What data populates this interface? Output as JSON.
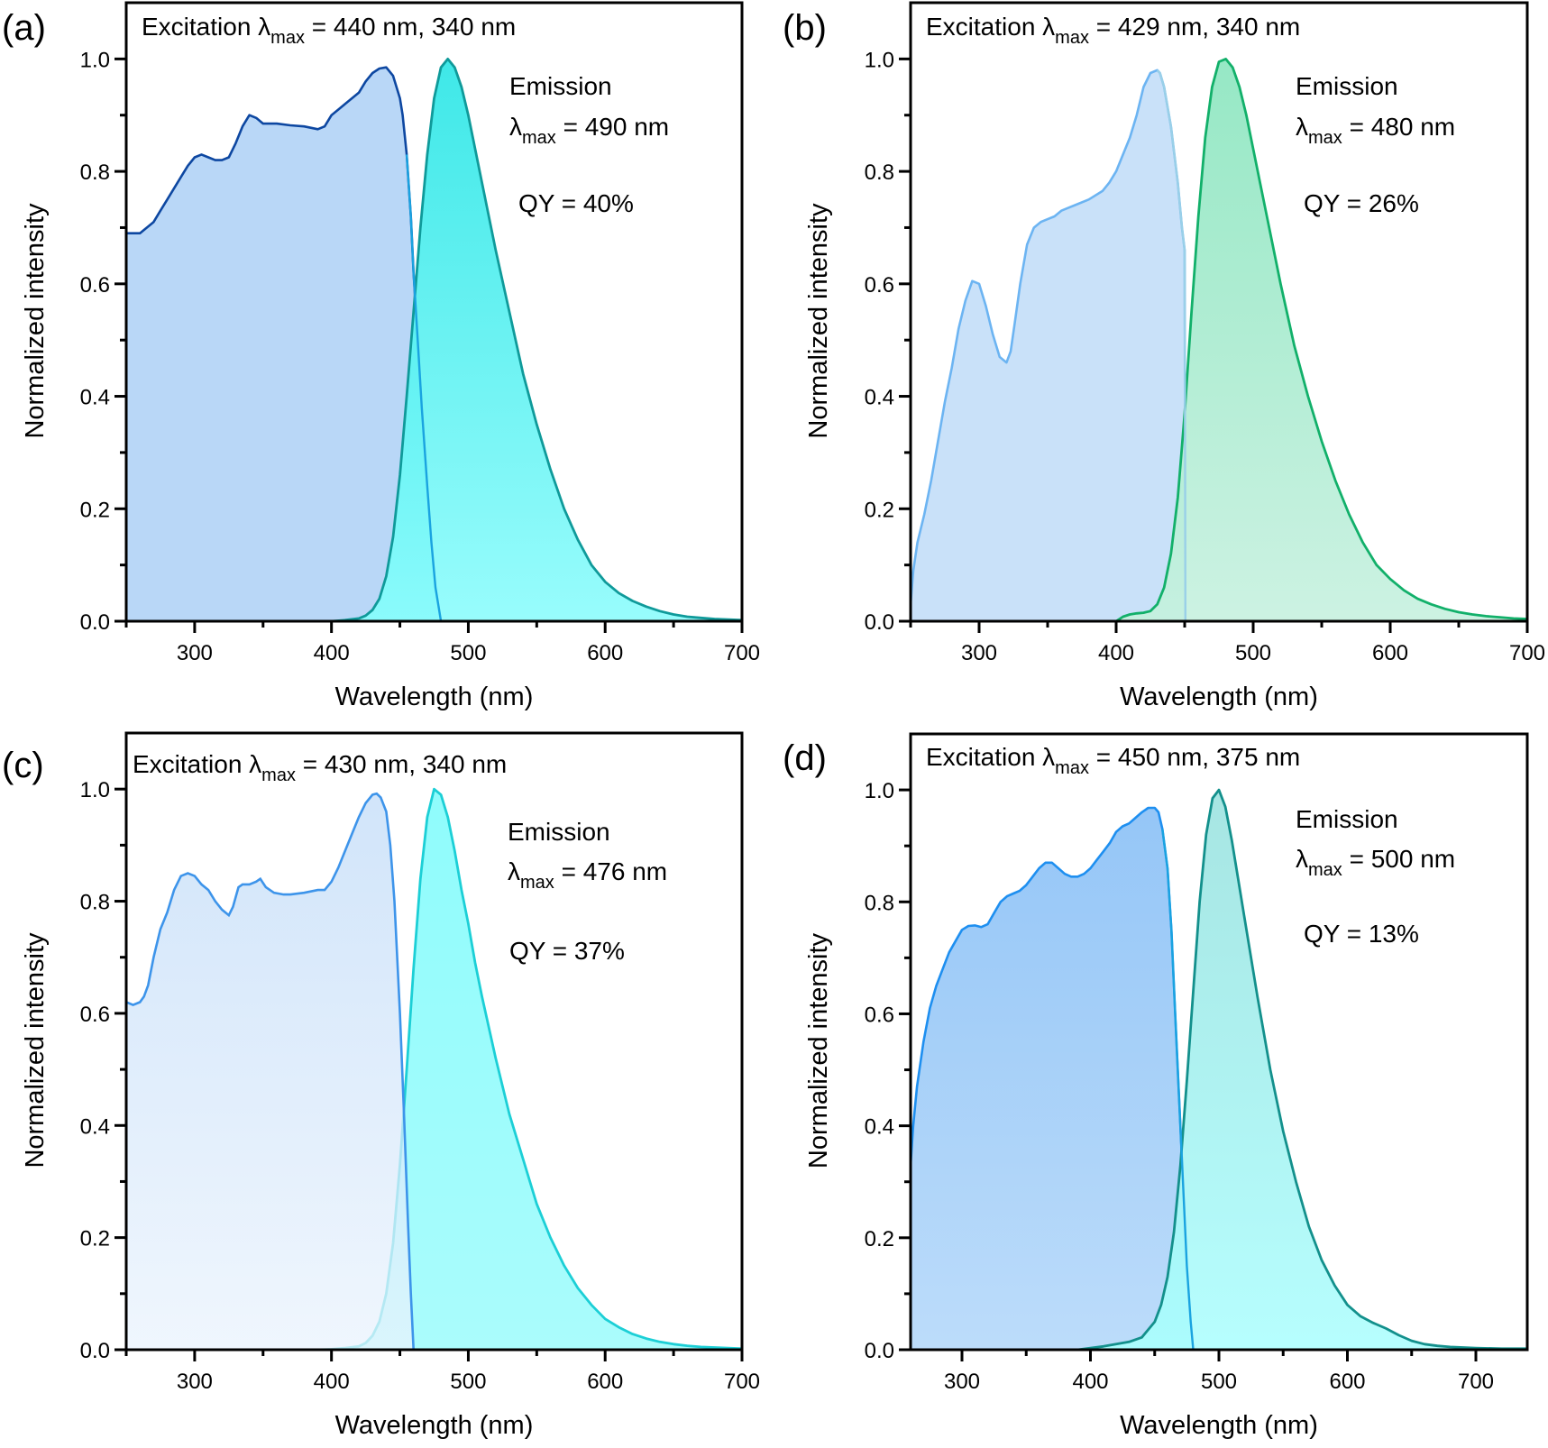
{
  "chart_data": [
    {
      "type": "area",
      "panel_label": "(a)",
      "xlabel": "Wavelength (nm)",
      "ylabel": "Normalized intensity",
      "xlim": [
        250,
        700
      ],
      "ylim": [
        0,
        1.1
      ],
      "xticks": [
        300,
        400,
        500,
        600,
        700
      ],
      "yticks": [
        0.0,
        0.2,
        0.4,
        0.6,
        0.8,
        1.0
      ],
      "annotations": {
        "excitation_prefix": "Excitation ",
        "lambda": "λ",
        "sub": "max",
        "excitation_values": " = 440 nm, 340 nm",
        "emission_title": "Emission",
        "emission_value": " = 490 nm",
        "qy": "QY = 40%"
      },
      "colors": {
        "exc_line": "#0d47a1",
        "exc_fill": "#b9d7f7",
        "em_line": "#0f9a9a",
        "em_fill_top": "#2ee6e6",
        "em_fill_bottom": "#8ffcfc"
      },
      "series": [
        {
          "name": "Excitation",
          "x": [
            250,
            255,
            260,
            265,
            270,
            275,
            280,
            285,
            290,
            295,
            300,
            305,
            310,
            315,
            320,
            325,
            330,
            335,
            340,
            345,
            350,
            355,
            360,
            370,
            380,
            390,
            395,
            400,
            405,
            410,
            420,
            425,
            430,
            435,
            440,
            445,
            450,
            452,
            455,
            458,
            460,
            463,
            466,
            470,
            473,
            476,
            480
          ],
          "y": [
            0.69,
            0.69,
            0.69,
            0.7,
            0.71,
            0.73,
            0.75,
            0.77,
            0.79,
            0.81,
            0.825,
            0.83,
            0.825,
            0.82,
            0.82,
            0.825,
            0.85,
            0.88,
            0.9,
            0.895,
            0.885,
            0.885,
            0.885,
            0.882,
            0.88,
            0.875,
            0.88,
            0.9,
            0.91,
            0.92,
            0.94,
            0.96,
            0.975,
            0.983,
            0.985,
            0.97,
            0.93,
            0.9,
            0.83,
            0.72,
            0.62,
            0.5,
            0.38,
            0.24,
            0.14,
            0.06,
            0.0
          ]
        },
        {
          "name": "Emission",
          "x": [
            400,
            410,
            420,
            425,
            430,
            435,
            440,
            445,
            450,
            455,
            460,
            465,
            470,
            475,
            480,
            485,
            490,
            495,
            500,
            505,
            510,
            515,
            520,
            530,
            540,
            550,
            560,
            570,
            580,
            590,
            600,
            610,
            620,
            630,
            640,
            650,
            660,
            670,
            680,
            690,
            700
          ],
          "y": [
            0.0,
            0.002,
            0.005,
            0.01,
            0.02,
            0.04,
            0.08,
            0.15,
            0.26,
            0.4,
            0.55,
            0.7,
            0.83,
            0.93,
            0.985,
            1.0,
            0.985,
            0.95,
            0.9,
            0.84,
            0.78,
            0.72,
            0.66,
            0.55,
            0.44,
            0.35,
            0.27,
            0.2,
            0.145,
            0.1,
            0.07,
            0.05,
            0.036,
            0.026,
            0.018,
            0.012,
            0.008,
            0.006,
            0.004,
            0.003,
            0.002
          ]
        }
      ]
    },
    {
      "type": "area",
      "panel_label": "(b)",
      "xlabel": "Wavelength (nm)",
      "ylabel": "Normalized intensity",
      "xlim": [
        250,
        700
      ],
      "ylim": [
        0,
        1.1
      ],
      "xticks": [
        300,
        400,
        500,
        600,
        700
      ],
      "yticks": [
        0.0,
        0.2,
        0.4,
        0.6,
        0.8,
        1.0
      ],
      "annotations": {
        "excitation_prefix": "Excitation ",
        "lambda": "λ",
        "sub": "max",
        "excitation_values": " = 429 nm, 340 nm",
        "emission_title": "Emission",
        "emission_value": " = 480 nm",
        "qy": "QY = 26%"
      },
      "colors": {
        "exc_line": "#6cb4f2",
        "exc_fill": "#c9e1f9",
        "em_line": "#12b06a",
        "em_fill_top": "#8de6c0",
        "em_fill_bottom": "#c8f1e0"
      },
      "series": [
        {
          "name": "Excitation",
          "x": [
            250,
            252,
            255,
            260,
            265,
            270,
            275,
            280,
            285,
            290,
            295,
            300,
            305,
            310,
            315,
            320,
            323,
            326,
            330,
            335,
            340,
            345,
            350,
            355,
            360,
            365,
            370,
            380,
            390,
            395,
            400,
            405,
            410,
            415,
            420,
            425,
            430,
            432,
            435,
            440,
            445,
            448,
            450,
            450.5
          ],
          "y": [
            0.03,
            0.09,
            0.14,
            0.19,
            0.25,
            0.32,
            0.39,
            0.45,
            0.52,
            0.57,
            0.605,
            0.6,
            0.56,
            0.51,
            0.47,
            0.46,
            0.48,
            0.53,
            0.6,
            0.67,
            0.7,
            0.71,
            0.715,
            0.72,
            0.73,
            0.735,
            0.74,
            0.75,
            0.765,
            0.78,
            0.8,
            0.83,
            0.86,
            0.9,
            0.95,
            0.975,
            0.98,
            0.975,
            0.95,
            0.88,
            0.78,
            0.7,
            0.66,
            0.0
          ]
        },
        {
          "name": "Emission",
          "x": [
            400,
            405,
            410,
            415,
            420,
            425,
            430,
            435,
            440,
            445,
            450,
            455,
            460,
            465,
            470,
            475,
            480,
            485,
            490,
            495,
            500,
            505,
            510,
            520,
            530,
            540,
            550,
            560,
            570,
            580,
            590,
            600,
            610,
            620,
            630,
            640,
            650,
            660,
            670,
            680,
            690,
            700
          ],
          "y": [
            0.0,
            0.008,
            0.012,
            0.014,
            0.015,
            0.018,
            0.03,
            0.06,
            0.12,
            0.22,
            0.37,
            0.55,
            0.72,
            0.86,
            0.95,
            0.995,
            1.0,
            0.985,
            0.95,
            0.9,
            0.84,
            0.78,
            0.72,
            0.6,
            0.49,
            0.4,
            0.32,
            0.25,
            0.19,
            0.14,
            0.1,
            0.075,
            0.055,
            0.04,
            0.03,
            0.022,
            0.016,
            0.012,
            0.009,
            0.007,
            0.005,
            0.004
          ]
        }
      ]
    },
    {
      "type": "area",
      "panel_label": "(c)",
      "xlabel": "Wavelength (nm)",
      "ylabel": "Normalized intensity",
      "xlim": [
        250,
        700
      ],
      "ylim": [
        0,
        1.1
      ],
      "xticks": [
        300,
        400,
        500,
        600,
        700
      ],
      "yticks": [
        0.0,
        0.2,
        0.4,
        0.6,
        0.8,
        1.0
      ],
      "annotations": {
        "excitation_prefix": "Excitation ",
        "lambda": "λ",
        "sub": "max",
        "excitation_values": " = 430 nm, 340 nm",
        "emission_title": "Emission",
        "emission_value": " = 476 nm",
        "qy": "QY = 37%"
      },
      "colors": {
        "exc_line": "#3d94ea",
        "exc_fill_top": "#c2dcf8",
        "exc_fill_bottom": "#eaf3fd",
        "em_line": "#1ccfd6",
        "em_fill_top": "#8ffcfc",
        "em_fill_bottom": "#aafcfc"
      },
      "series": [
        {
          "name": "Excitation",
          "x": [
            250,
            255,
            260,
            263,
            266,
            270,
            275,
            280,
            285,
            290,
            295,
            300,
            305,
            310,
            315,
            320,
            325,
            328,
            332,
            335,
            340,
            345,
            348,
            352,
            358,
            365,
            370,
            380,
            390,
            395,
            400,
            405,
            410,
            415,
            420,
            425,
            430,
            433,
            436,
            440,
            443,
            446,
            450,
            453,
            456,
            458,
            460
          ],
          "y": [
            0.62,
            0.615,
            0.62,
            0.63,
            0.65,
            0.7,
            0.75,
            0.78,
            0.82,
            0.845,
            0.85,
            0.845,
            0.83,
            0.82,
            0.8,
            0.785,
            0.775,
            0.79,
            0.825,
            0.83,
            0.83,
            0.835,
            0.84,
            0.825,
            0.815,
            0.812,
            0.812,
            0.815,
            0.82,
            0.82,
            0.835,
            0.86,
            0.89,
            0.92,
            0.95,
            0.975,
            0.99,
            0.992,
            0.985,
            0.96,
            0.9,
            0.8,
            0.6,
            0.42,
            0.22,
            0.1,
            0.0
          ]
        },
        {
          "name": "Emission",
          "x": [
            390,
            400,
            410,
            420,
            425,
            430,
            435,
            440,
            445,
            450,
            455,
            460,
            465,
            470,
            475,
            480,
            485,
            490,
            495,
            500,
            505,
            510,
            520,
            530,
            540,
            550,
            560,
            570,
            580,
            590,
            600,
            610,
            620,
            630,
            640,
            650,
            660,
            670,
            680,
            690,
            700
          ],
          "y": [
            0.0,
            0.001,
            0.003,
            0.006,
            0.012,
            0.025,
            0.05,
            0.1,
            0.19,
            0.33,
            0.5,
            0.68,
            0.84,
            0.95,
            1.0,
            0.99,
            0.95,
            0.89,
            0.82,
            0.76,
            0.69,
            0.63,
            0.52,
            0.42,
            0.34,
            0.26,
            0.2,
            0.15,
            0.11,
            0.08,
            0.055,
            0.04,
            0.028,
            0.02,
            0.014,
            0.01,
            0.007,
            0.005,
            0.004,
            0.003,
            0.002
          ]
        }
      ]
    },
    {
      "type": "area",
      "panel_label": "(d)",
      "xlabel": "Wavelength (nm)",
      "ylabel": "Normalized intensity",
      "xlim": [
        260,
        740
      ],
      "ylim": [
        0,
        1.1
      ],
      "xticks": [
        300,
        400,
        500,
        600,
        700
      ],
      "yticks": [
        0.0,
        0.2,
        0.4,
        0.6,
        0.8,
        1.0
      ],
      "annotations": {
        "excitation_prefix": "Excitation ",
        "lambda": "λ",
        "sub": "max",
        "excitation_values": " = 450 nm, 375 nm",
        "emission_title": "Emission",
        "emission_value": " = 500 nm",
        "qy": "QY = 13%"
      },
      "colors": {
        "exc_line": "#1e8ff0",
        "exc_fill_top": "#95c6f7",
        "exc_fill_bottom": "#bcdcfa",
        "em_line": "#13908c",
        "em_fill_top": "#9fe3e0",
        "em_fill_bottom": "#b0fefe",
        "overlap_fill": "#73e4f8"
      },
      "series": [
        {
          "name": "Excitation",
          "x": [
            260,
            262,
            265,
            270,
            275,
            280,
            285,
            290,
            295,
            300,
            305,
            310,
            315,
            320,
            325,
            330,
            335,
            340,
            345,
            350,
            355,
            360,
            365,
            370,
            375,
            380,
            385,
            390,
            395,
            400,
            405,
            410,
            415,
            420,
            425,
            430,
            435,
            440,
            445,
            450,
            453,
            456,
            460,
            463,
            466,
            469,
            472,
            475,
            478,
            480
          ],
          "y": [
            0.33,
            0.4,
            0.47,
            0.55,
            0.61,
            0.65,
            0.68,
            0.71,
            0.73,
            0.75,
            0.757,
            0.758,
            0.755,
            0.76,
            0.78,
            0.8,
            0.81,
            0.815,
            0.82,
            0.83,
            0.845,
            0.86,
            0.87,
            0.87,
            0.86,
            0.85,
            0.845,
            0.845,
            0.85,
            0.86,
            0.875,
            0.89,
            0.905,
            0.925,
            0.935,
            0.94,
            0.95,
            0.96,
            0.968,
            0.968,
            0.96,
            0.93,
            0.86,
            0.75,
            0.6,
            0.45,
            0.3,
            0.15,
            0.05,
            0.0
          ]
        },
        {
          "name": "Emission",
          "x": [
            390,
            400,
            410,
            420,
            430,
            440,
            450,
            455,
            460,
            465,
            470,
            475,
            480,
            485,
            490,
            495,
            500,
            505,
            510,
            515,
            520,
            530,
            540,
            550,
            560,
            570,
            580,
            590,
            600,
            610,
            620,
            630,
            640,
            650,
            660,
            670,
            680,
            690,
            700,
            720,
            740
          ],
          "y": [
            0.0,
            0.003,
            0.006,
            0.01,
            0.014,
            0.022,
            0.05,
            0.08,
            0.13,
            0.21,
            0.33,
            0.48,
            0.64,
            0.8,
            0.92,
            0.985,
            1.0,
            0.97,
            0.91,
            0.84,
            0.77,
            0.63,
            0.5,
            0.39,
            0.3,
            0.22,
            0.16,
            0.115,
            0.08,
            0.06,
            0.048,
            0.038,
            0.026,
            0.016,
            0.01,
            0.007,
            0.005,
            0.004,
            0.003,
            0.002,
            0.002
          ]
        }
      ]
    }
  ]
}
